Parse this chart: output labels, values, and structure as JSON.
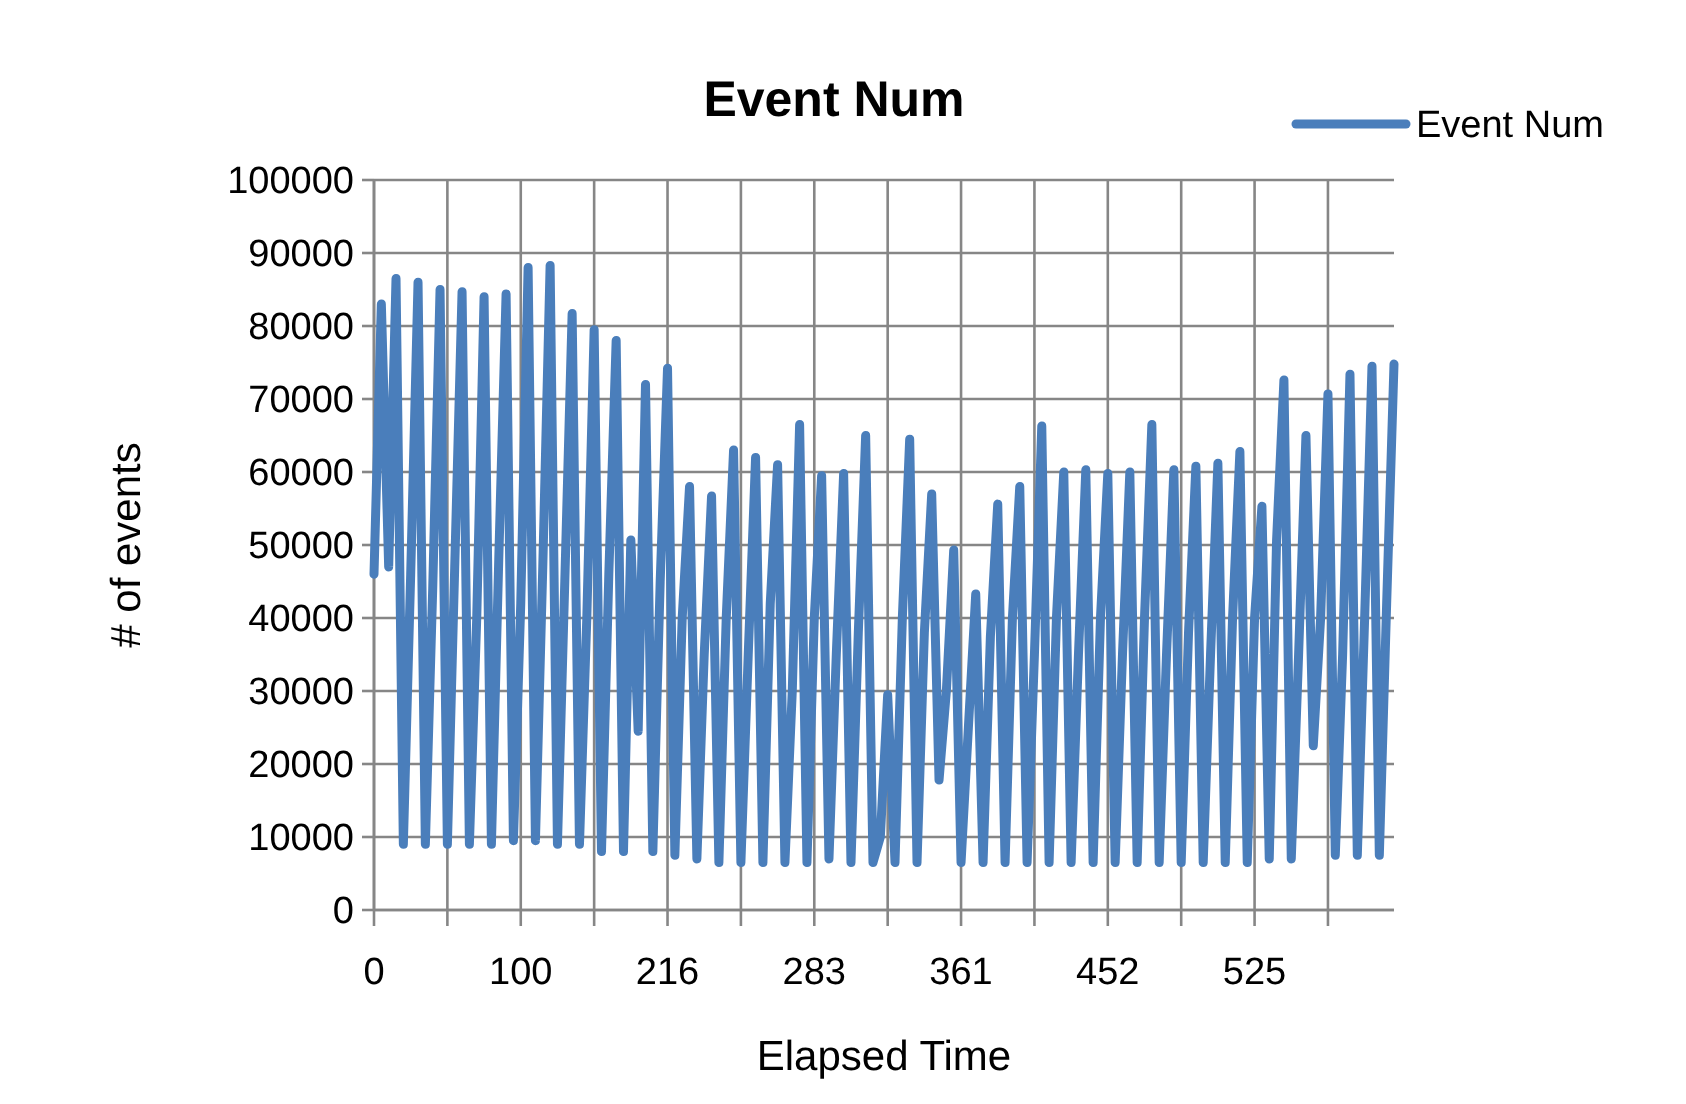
{
  "chart_data": {
    "type": "line",
    "title": "Event Num",
    "xlabel": "Elapsed Time",
    "ylabel": "# of events",
    "categories": [
      "0",
      null,
      null,
      null,
      null,
      null,
      null,
      null,
      null,
      null,
      null,
      null,
      null,
      null,
      null,
      null,
      null,
      null,
      null,
      null,
      "100",
      null,
      null,
      null,
      null,
      null,
      null,
      null,
      null,
      null,
      null,
      null,
      null,
      null,
      null,
      null,
      null,
      null,
      null,
      null,
      "216",
      null,
      null,
      null,
      null,
      null,
      null,
      null,
      null,
      null,
      null,
      null,
      null,
      null,
      null,
      null,
      null,
      null,
      null,
      null,
      "283",
      null,
      null,
      null,
      null,
      null,
      null,
      null,
      null,
      null,
      null,
      null,
      null,
      null,
      null,
      null,
      null,
      null,
      null,
      null,
      "361",
      null,
      null,
      null,
      null,
      null,
      null,
      null,
      null,
      null,
      null,
      null,
      null,
      null,
      null,
      null,
      null,
      null,
      null,
      null,
      "452",
      null,
      null,
      null,
      null,
      null,
      null,
      null,
      null,
      null,
      null,
      null,
      null,
      null,
      null,
      null,
      null,
      null,
      null,
      null,
      "525",
      null,
      null,
      null,
      null,
      null,
      null,
      null,
      null,
      null,
      null,
      null,
      null,
      null,
      null,
      null,
      null,
      null,
      null,
      null
    ],
    "series": [
      {
        "name": "Event Num",
        "color": "#4a7ebb",
        "values": [
          46000,
          83000,
          47000,
          86500,
          9000,
          46000,
          86000,
          9000,
          44000,
          85000,
          9000,
          47000,
          84700,
          9000,
          40000,
          84000,
          9000,
          48000,
          84400,
          9500,
          42000,
          88000,
          9500,
          47000,
          88300,
          9000,
          45000,
          81700,
          9000,
          40000,
          79500,
          8000,
          46000,
          78000,
          8000,
          50700,
          24500,
          72000,
          8000,
          45000,
          74200,
          7500,
          40000,
          58000,
          7000,
          35000,
          56700,
          6500,
          40000,
          63000,
          6500,
          35000,
          62000,
          6500,
          42000,
          61000,
          6500,
          30000,
          66500,
          6500,
          40000,
          59500,
          7000,
          35000,
          59800,
          6500,
          38000,
          65000,
          6500,
          10000,
          29500,
          6500,
          40000,
          64500,
          6500,
          38000,
          57000,
          17800,
          30000,
          49300,
          6500,
          25000,
          43300,
          6500,
          37500,
          55600,
          6500,
          40000,
          58000,
          6500,
          35000,
          66300,
          6500,
          40000,
          60000,
          6500,
          35000,
          60300,
          6500,
          40000,
          59800,
          6500,
          35000,
          60000,
          6500,
          40000,
          66500,
          6500,
          35000,
          60300,
          6500,
          38000,
          60800,
          6500,
          35000,
          61200,
          6500,
          40000,
          62800,
          6500,
          40000,
          55300,
          7000,
          50700,
          72600,
          7000,
          35000,
          65000,
          22500,
          40000,
          70700,
          7500,
          35000,
          73400,
          7500,
          40000,
          74500,
          7500,
          42000,
          74800
        ]
      }
    ],
    "ylim": [
      0,
      100000
    ],
    "yticks": [
      0,
      10000,
      20000,
      30000,
      40000,
      50000,
      60000,
      70000,
      80000,
      90000,
      100000
    ],
    "grid": true,
    "legend": "top right",
    "marker": "none",
    "line_style": "solid"
  }
}
